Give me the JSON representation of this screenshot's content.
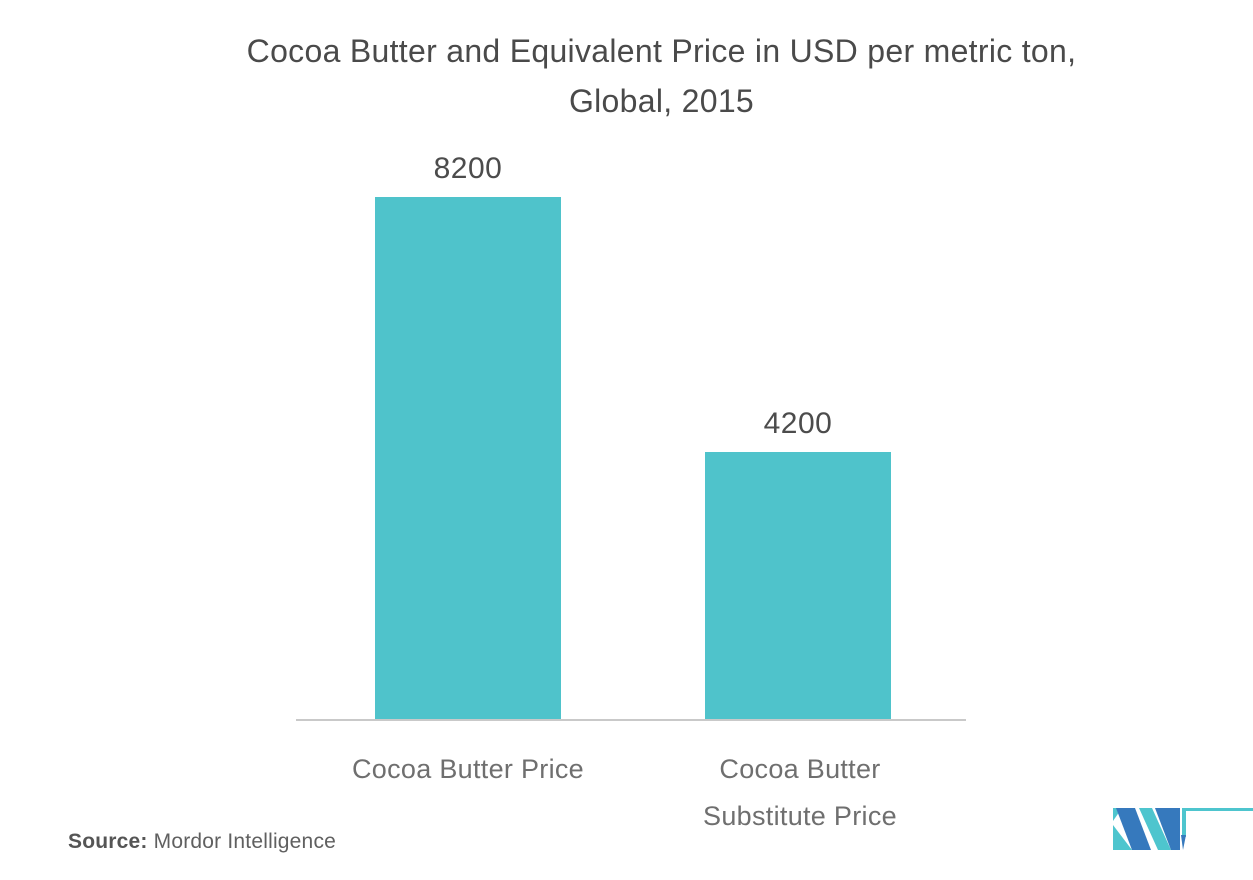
{
  "chart_data": {
    "type": "bar",
    "title": "Cocoa Butter and Equivalent Price in USD per metric ton, Global, 2015",
    "title_line1": "Cocoa Butter and Equivalent Price in USD per metric ton,",
    "title_line2": "Global, 2015",
    "categories": [
      "Cocoa Butter Price",
      "Cocoa Butter Substitute Price"
    ],
    "values": [
      8200,
      4200
    ],
    "bars": [
      {
        "label_line1": "Cocoa Butter Price",
        "label_line2": ""
      },
      {
        "label_line1": "Cocoa Butter",
        "label_line2": "Substitute Price"
      }
    ],
    "bar_color": "#4FC3CB",
    "axis_line_color": "#C9C9C9",
    "xlabel": "",
    "ylabel": "",
    "grid": false,
    "legend": false
  },
  "footer": {
    "source_label": "Source:",
    "source_value": " Mordor Intelligence"
  },
  "logo": {
    "name": "mordor-intelligence-logo",
    "teal": "#4EC5CE",
    "blue": "#3679BD"
  }
}
